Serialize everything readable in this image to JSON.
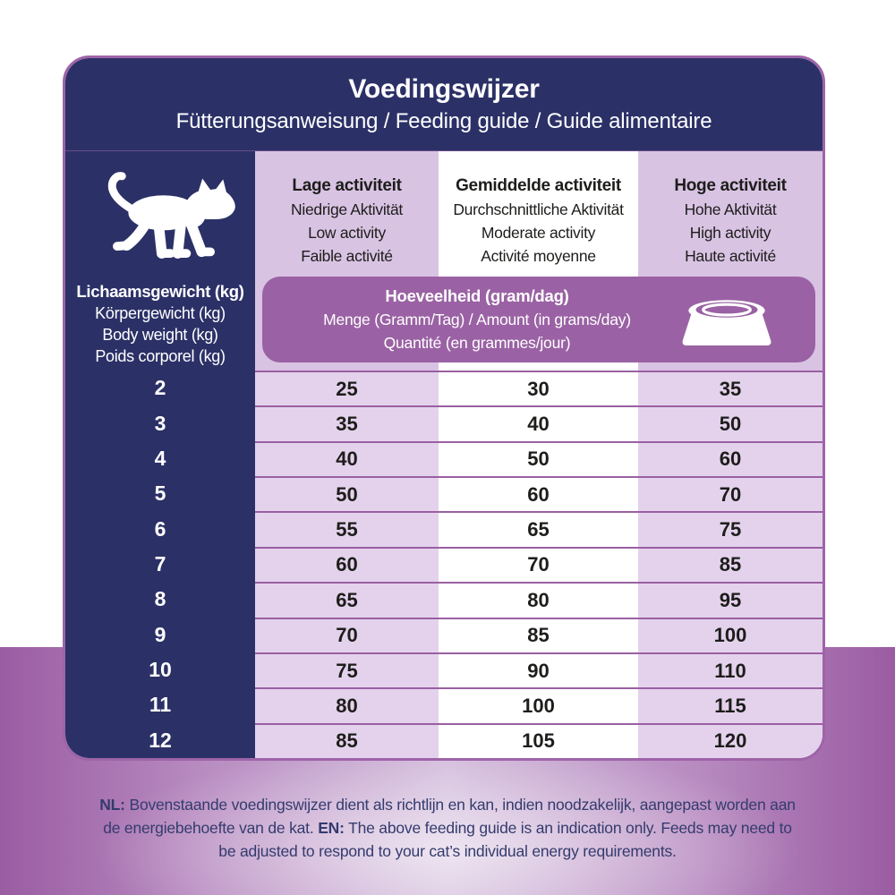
{
  "header": {
    "title": "Voedingswijzer",
    "subtitle": "Fütterungsanweisung / Feeding guide / Guide alimentaire"
  },
  "weight_header": {
    "lines": [
      "Lichaamsgewicht (kg)",
      "Körpergewicht (kg)",
      "Body weight (kg)",
      "Poids corporel (kg)"
    ]
  },
  "columns": [
    {
      "key": "low",
      "lines": [
        "Lage activiteit",
        "Niedrige Aktivität",
        "Low activity",
        "Faible activité"
      ]
    },
    {
      "key": "moderate",
      "lines": [
        "Gemiddelde activiteit",
        "Durchschnittliche Aktivität",
        "Moderate activity",
        "Activité moyenne"
      ]
    },
    {
      "key": "high",
      "lines": [
        "Hoge activiteit",
        "Hohe Aktivität",
        "High activity",
        "Haute activité"
      ]
    }
  ],
  "amount_banner": {
    "lines": [
      "Hoeveelheid (gram/dag)",
      "Menge (Gramm/Tag) / Amount (in grams/day)",
      "Quantité (en grammes/jour)"
    ]
  },
  "table": {
    "rows": [
      {
        "weight": "2",
        "low": "25",
        "moderate": "30",
        "high": "35"
      },
      {
        "weight": "3",
        "low": "35",
        "moderate": "40",
        "high": "50"
      },
      {
        "weight": "4",
        "low": "40",
        "moderate": "50",
        "high": "60"
      },
      {
        "weight": "5",
        "low": "50",
        "moderate": "60",
        "high": "70"
      },
      {
        "weight": "6",
        "low": "55",
        "moderate": "65",
        "high": "75"
      },
      {
        "weight": "7",
        "low": "60",
        "moderate": "70",
        "high": "85"
      },
      {
        "weight": "8",
        "low": "65",
        "moderate": "80",
        "high": "95"
      },
      {
        "weight": "9",
        "low": "70",
        "moderate": "85",
        "high": "100"
      },
      {
        "weight": "10",
        "low": "75",
        "moderate": "90",
        "high": "110"
      },
      {
        "weight": "11",
        "low": "80",
        "moderate": "100",
        "high": "115"
      },
      {
        "weight": "12",
        "low": "85",
        "moderate": "105",
        "high": "120"
      }
    ]
  },
  "footer": {
    "nl_label": "NL:",
    "nl_text": "Bovenstaande voedingswijzer dient als richtlijn en kan, indien noodzakelijk, aangepast worden aan de energiebehoefte van de kat.",
    "en_label": "EN:",
    "en_text": "The above feeding guide is an indication only. Feeds may need to be adjusted to respond to your cat’s individual energy requirements."
  },
  "icons": {
    "cat": "cat-icon",
    "bowl": "bowl-icon"
  },
  "colors": {
    "navy": "#2b3167",
    "card_border": "#9e64a8",
    "lavender_header": "#d9c3e3",
    "lavender_row": "#e4d2ec",
    "row_separator": "#9a5fa2",
    "banner_purple": "#9a62a4",
    "footer_text": "#333b6d",
    "background_purple": "#9a5ca2"
  }
}
